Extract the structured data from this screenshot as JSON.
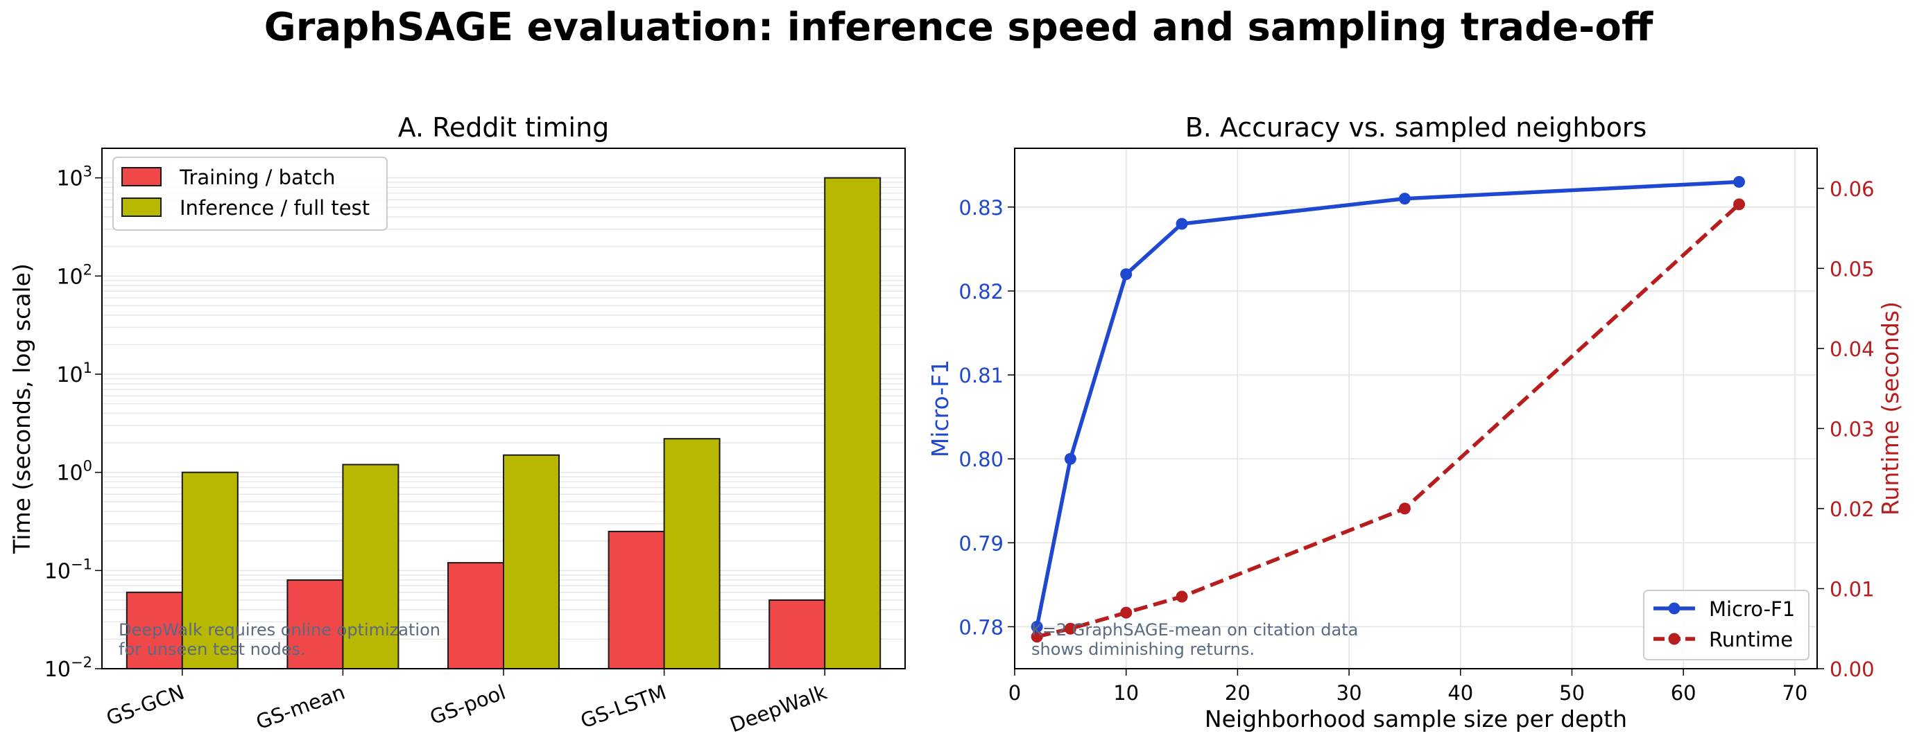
{
  "figure": {
    "title": "GraphSAGE evaluation: inference speed and sampling trade-off"
  },
  "chart_data": [
    {
      "type": "bar",
      "title": "A. Reddit timing",
      "xlabel": "",
      "ylabel": "Time (seconds, log scale)",
      "yscale": "log",
      "ylim": [
        0.01,
        2000
      ],
      "grid": "y-minor",
      "legend": "top-left",
      "categories": [
        "GS-GCN",
        "GS-mean",
        "GS-pool",
        "GS-LSTM",
        "DeepWalk"
      ],
      "yticks": [
        {
          "value": 0.01,
          "base": "10",
          "exp": "−2"
        },
        {
          "value": 0.1,
          "base": "10",
          "exp": "−1"
        },
        {
          "value": 1,
          "base": "10",
          "exp": "0"
        },
        {
          "value": 10,
          "base": "10",
          "exp": "1"
        },
        {
          "value": 100,
          "base": "10",
          "exp": "2"
        },
        {
          "value": 1000,
          "base": "10",
          "exp": "3"
        }
      ],
      "series": [
        {
          "name": "Training / batch",
          "color": "#f04848",
          "values": [
            0.06,
            0.08,
            0.12,
            0.25,
            0.05
          ]
        },
        {
          "name": "Inference / full test",
          "color": "#b8b800",
          "values": [
            1.0,
            1.2,
            1.5,
            2.2,
            1000
          ]
        }
      ],
      "annotation": [
        "DeepWalk requires online optimization",
        "for unseen test nodes."
      ]
    },
    {
      "type": "line",
      "title": "B. Accuracy vs. sampled neighbors",
      "xlabel": "Neighborhood sample size per depth",
      "ylabel": "Micro-F1",
      "y2label": "Runtime (seconds)",
      "xlim": [
        0,
        72
      ],
      "ylim": [
        0.775,
        0.837
      ],
      "y2lim": [
        0,
        0.065
      ],
      "grid": true,
      "legend": "bottom-right",
      "xticks": [
        "0",
        "10",
        "20",
        "30",
        "40",
        "50",
        "60",
        "70"
      ],
      "yticks": [
        "0.78",
        "0.79",
        "0.80",
        "0.81",
        "0.82",
        "0.83"
      ],
      "y2ticks": [
        "0.00",
        "0.01",
        "0.02",
        "0.03",
        "0.04",
        "0.05",
        "0.06"
      ],
      "x": [
        2,
        5,
        10,
        15,
        35,
        65
      ],
      "series": [
        {
          "name": "Micro-F1",
          "axis": "left",
          "color": "#1f48d0",
          "style": "solid",
          "values": [
            0.78,
            0.8,
            0.822,
            0.828,
            0.831,
            0.833
          ]
        },
        {
          "name": "Runtime",
          "axis": "right",
          "color": "#b81c1c",
          "style": "dashed",
          "values": [
            0.004,
            0.005,
            0.007,
            0.009,
            0.02,
            0.058
          ]
        }
      ],
      "annotation": [
        "K=2 GraphSAGE-mean on citation data",
        "shows diminishing returns."
      ]
    }
  ]
}
